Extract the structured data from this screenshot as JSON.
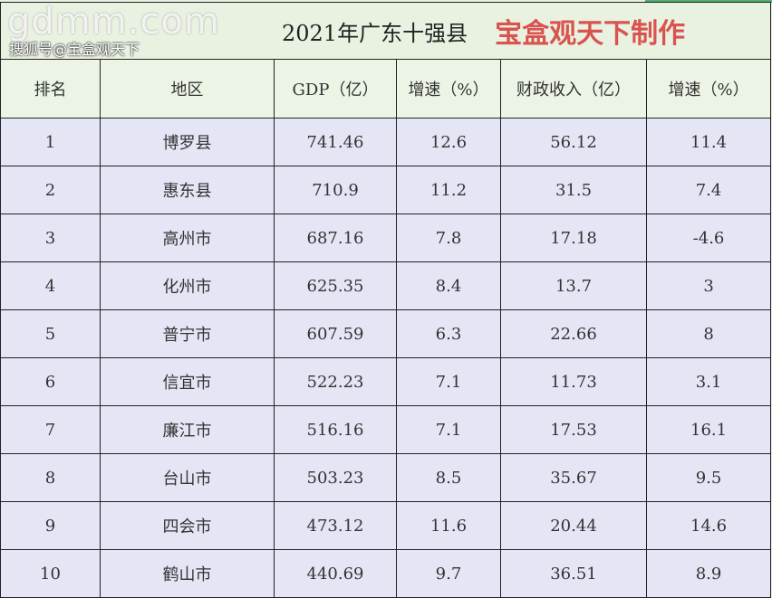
{
  "title": "2021年广东十强县",
  "maker": "宝盒观天下制作",
  "headers": [
    "排名",
    "地区",
    "GDP（亿）",
    "增速（%）",
    "财政收入（亿）",
    "增速（%）"
  ],
  "rows": [
    [
      "1",
      "博罗县",
      "741.46",
      "12.6",
      "56.12",
      "11.4"
    ],
    [
      "2",
      "惠东县",
      "710.9",
      "11.2",
      "31.5",
      "7.4"
    ],
    [
      "3",
      "高州市",
      "687.16",
      "7.8",
      "17.18",
      "-4.6"
    ],
    [
      "4",
      "化州市",
      "625.35",
      "8.4",
      "13.7",
      "3"
    ],
    [
      "5",
      "普宁市",
      "607.59",
      "6.3",
      "22.66",
      "8"
    ],
    [
      "6",
      "信宜市",
      "522.23",
      "7.1",
      "11.73",
      "3.1"
    ],
    [
      "7",
      "廉江市",
      "516.16",
      "7.1",
      "17.53",
      "16.1"
    ],
    [
      "8",
      "台山市",
      "503.23",
      "8.5",
      "35.67",
      "9.5"
    ],
    [
      "9",
      "四会市",
      "473.12",
      "11.6",
      "20.44",
      "14.6"
    ],
    [
      "10",
      "鹤山市",
      "440.69",
      "9.7",
      "36.51",
      "8.9"
    ]
  ],
  "watermark": "gdmm.com",
  "source_watermark": "搜狐号@宝盒观天下"
}
